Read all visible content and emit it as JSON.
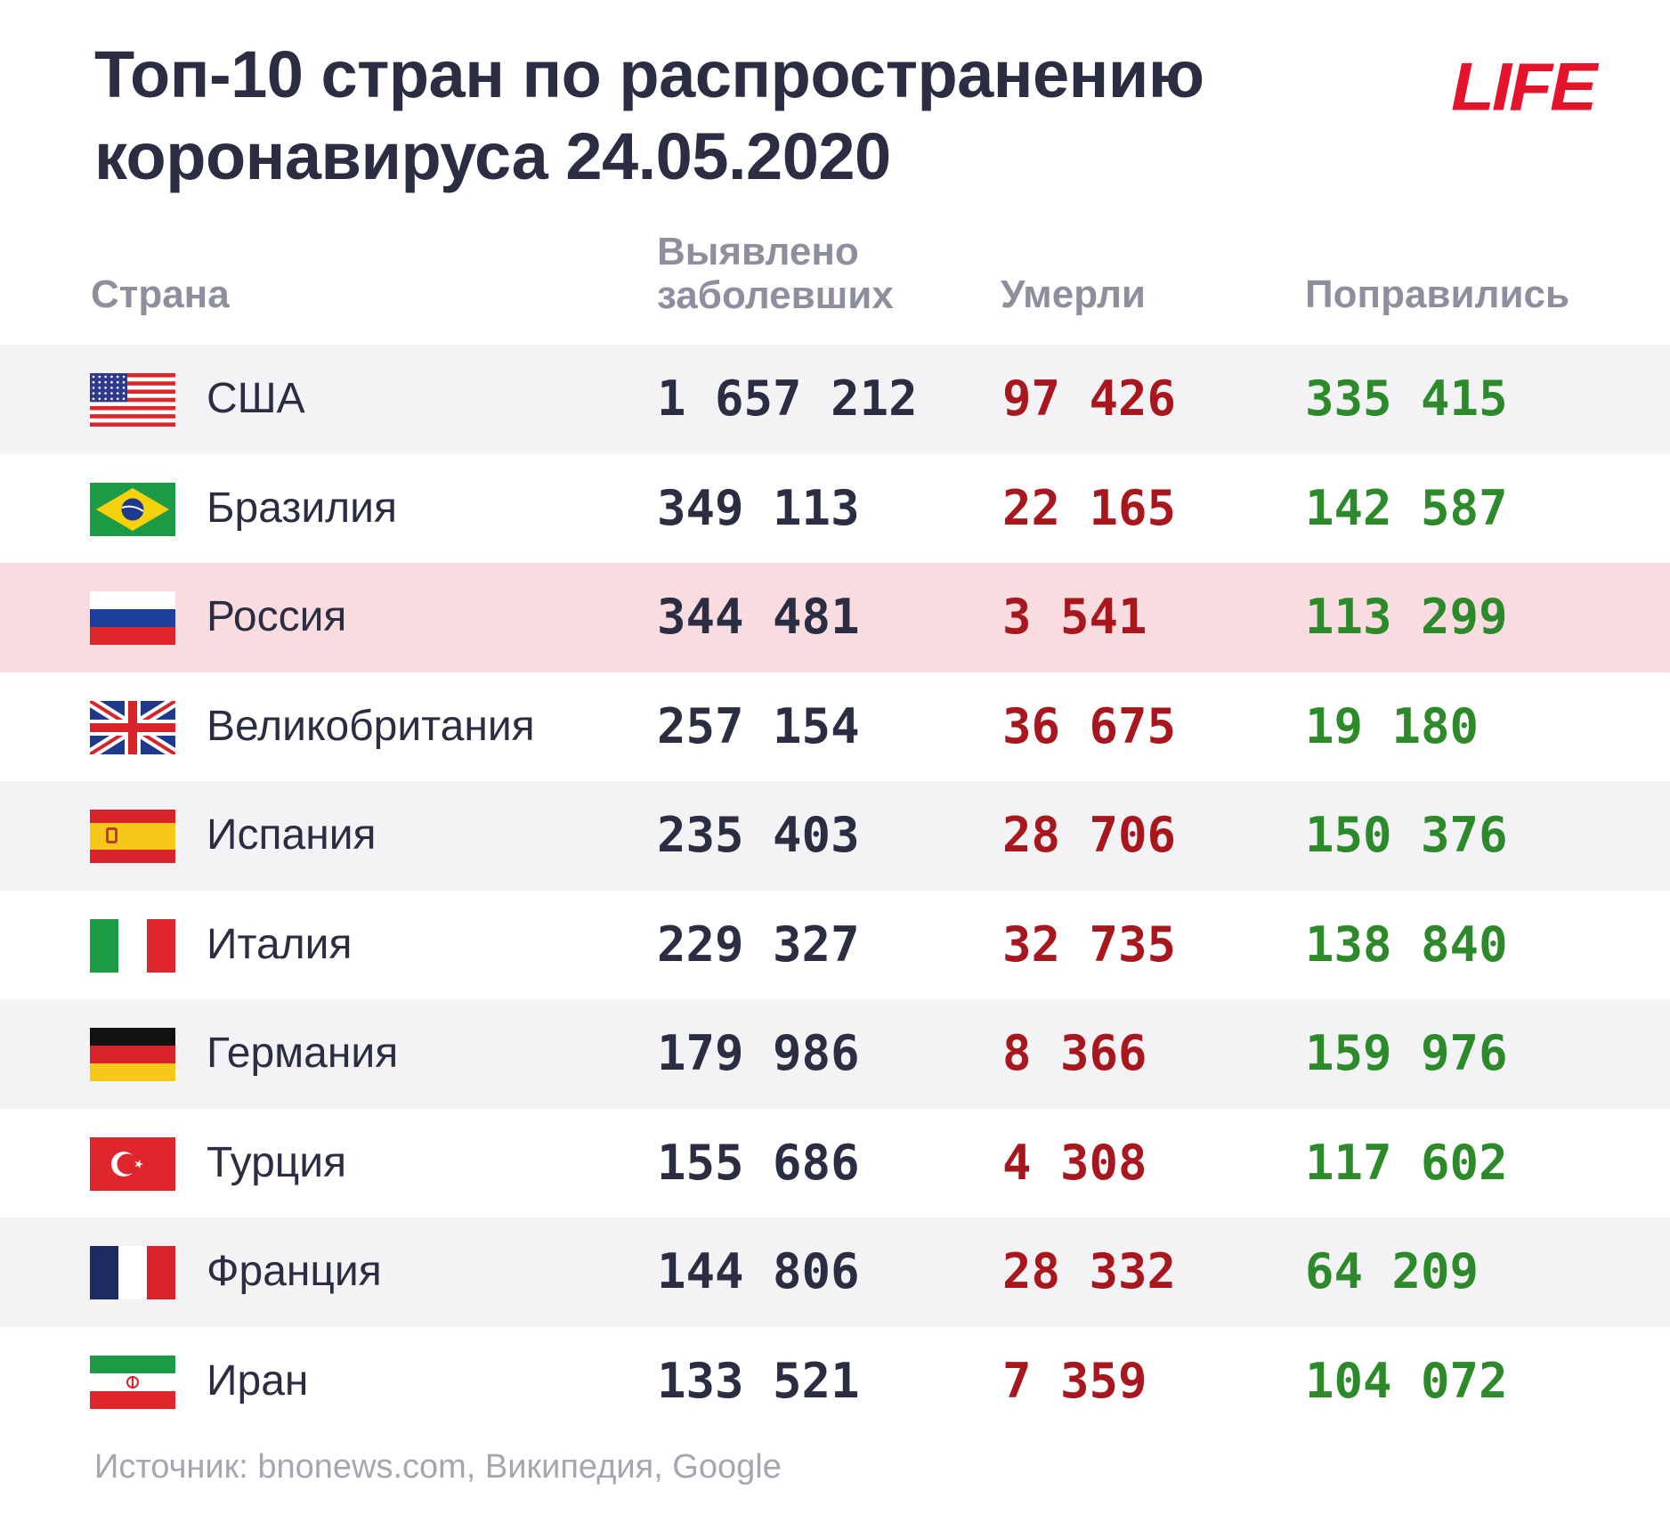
{
  "chart_data": {
    "type": "table",
    "title_line1": "Топ-10 стран по распространению",
    "title_line2": "коронавируса 24.05.2020",
    "brand": "LIFE",
    "columns": {
      "country": "Страна",
      "cases_line1": "Выявлено",
      "cases_line2": "заболевших",
      "deaths": "Умерли",
      "recovered": "Поправились"
    },
    "rows": [
      {
        "country": "США",
        "flag": "us-flag",
        "cases": "1 657 212",
        "deaths": "97 426",
        "recovered": "335 415"
      },
      {
        "country": "Бразилия",
        "flag": "brazil-flag",
        "cases": "349 113",
        "deaths": "22 165",
        "recovered": "142 587"
      },
      {
        "country": "Россия",
        "flag": "russia-flag",
        "cases": "344 481",
        "deaths": "3 541",
        "recovered": "113 299",
        "highlight": true
      },
      {
        "country": "Великобритания",
        "flag": "uk-flag",
        "cases": "257 154",
        "deaths": "36 675",
        "recovered": "19 180"
      },
      {
        "country": "Испания",
        "flag": "spain-flag",
        "cases": "235 403",
        "deaths": "28 706",
        "recovered": "150 376"
      },
      {
        "country": "Италия",
        "flag": "italy-flag",
        "cases": "229 327",
        "deaths": "32 735",
        "recovered": "138 840"
      },
      {
        "country": "Германия",
        "flag": "germany-flag",
        "cases": "179 986",
        "deaths": "8 366",
        "recovered": "159 976"
      },
      {
        "country": "Турция",
        "flag": "turkey-flag",
        "cases": "155 686",
        "deaths": "4 308",
        "recovered": "117 602"
      },
      {
        "country": "Франция",
        "flag": "france-flag",
        "cases": "144 806",
        "deaths": "28 332",
        "recovered": "64 209"
      },
      {
        "country": "Иран",
        "flag": "iran-flag",
        "cases": "133 521",
        "deaths": "7 359",
        "recovered": "104 072"
      }
    ],
    "source": "Источник: bnonews.com, Википедия, Google"
  },
  "colors": {
    "title": "#2b2d42",
    "header": "#8d8f9e",
    "cases": "#2b2d42",
    "deaths": "#a8171d",
    "recovered": "#2d8a2b",
    "logo": "#e5142b",
    "row_alt": "#f3f3f5",
    "row_highlight": "#f8dcdf"
  }
}
